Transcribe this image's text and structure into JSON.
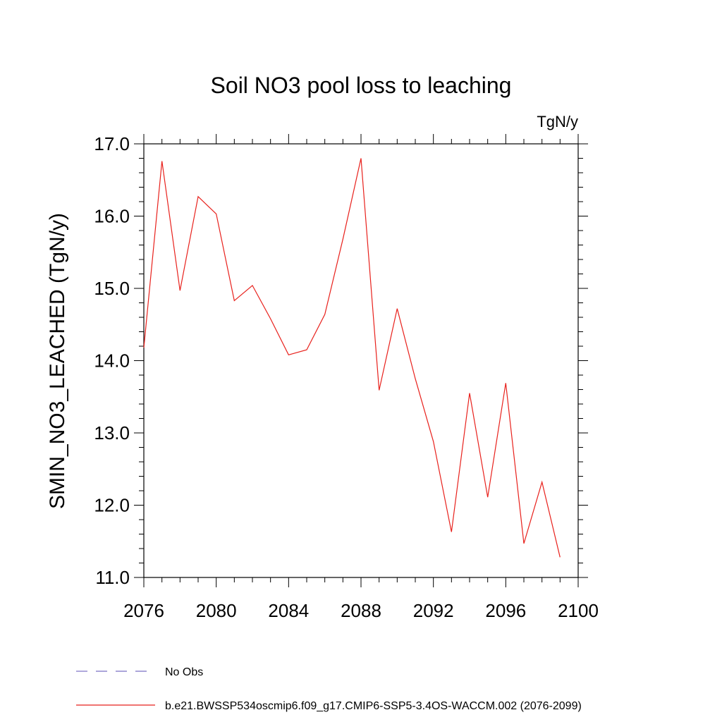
{
  "chart_data": {
    "type": "line",
    "title": "Soil NO3 pool loss to leaching",
    "units": "TgN/y",
    "ylabel": "SMIN_NO3_LEACHED  (TgN/y)",
    "xlabel": "",
    "xlim": [
      2076,
      2100
    ],
    "ylim": [
      11.0,
      17.0
    ],
    "x_ticks": [
      "2076",
      "2080",
      "2084",
      "2088",
      "2092",
      "2096",
      "2100"
    ],
    "y_ticks": [
      "11.0",
      "12.0",
      "13.0",
      "14.0",
      "15.0",
      "16.0",
      "17.0"
    ],
    "grid": false,
    "series": [
      {
        "name": "b.e21.BWSSP534oscmip6.f09_g17.CMIP6-SSP5-3.4OS-WACCM.002 (2076-2099)",
        "color": "#e8211c",
        "style": "solid",
        "x": [
          2076,
          2077,
          2078,
          2079,
          2080,
          2081,
          2082,
          2083,
          2084,
          2085,
          2086,
          2087,
          2088,
          2089,
          2090,
          2091,
          2092,
          2093,
          2094,
          2095,
          2096,
          2097,
          2098,
          2099
        ],
        "y": [
          14.18,
          16.76,
          14.97,
          16.27,
          16.03,
          14.83,
          15.04,
          14.58,
          14.08,
          14.15,
          14.64,
          15.68,
          16.8,
          13.59,
          14.72,
          13.75,
          12.88,
          11.63,
          13.55,
          12.11,
          13.69,
          11.47,
          12.32,
          11.28
        ]
      }
    ],
    "legend": {
      "placement": "bottom-left",
      "items": [
        {
          "label": "No Obs",
          "color": "#7b6fc4",
          "style": "dashed"
        },
        {
          "label": "b.e21.BWSSP534oscmip6.f09_g17.CMIP6-SSP5-3.4OS-WACCM.002 (2076-2099)",
          "color": "#e8211c",
          "style": "solid"
        }
      ]
    }
  }
}
